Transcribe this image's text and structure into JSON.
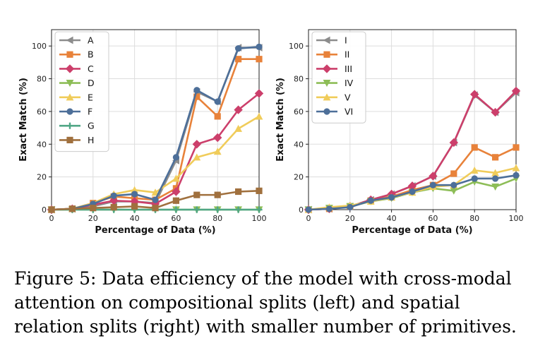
{
  "caption": "Figure 5: Data efficiency of the model with cross-modal attention on compositional splits (left) and spatial relation splits (right) with smaller number of primitives.",
  "chart_data": [
    {
      "type": "line",
      "title": "",
      "xlabel": "Percentage of Data (%)",
      "ylabel": "Exact Match (%)",
      "xlim": [
        0,
        100
      ],
      "ylim": [
        0,
        110
      ],
      "xticks": [
        0,
        20,
        40,
        60,
        80,
        100
      ],
      "yticks": [
        0,
        20,
        40,
        60,
        80,
        100
      ],
      "grid": true,
      "legend_position": "top-left",
      "x": [
        0,
        10,
        20,
        30,
        40,
        50,
        60,
        70,
        80,
        90,
        100
      ],
      "series": [
        {
          "name": "A",
          "color": "#8c8c8c",
          "marker": "triangle-left",
          "values": [
            0,
            0.5,
            2,
            5,
            5,
            4,
            30,
            72,
            66,
            99,
            99
          ]
        },
        {
          "name": "B",
          "color": "#e8823a",
          "marker": "square",
          "values": [
            0,
            0.5,
            4,
            8,
            7,
            6,
            13,
            69,
            57,
            92,
            92
          ]
        },
        {
          "name": "C",
          "color": "#cc3f6b",
          "marker": "diamond",
          "values": [
            0,
            0.5,
            3,
            5.5,
            5,
            3.5,
            11,
            40,
            44,
            61,
            71
          ]
        },
        {
          "name": "D",
          "color": "#8dbd57",
          "marker": "triangle-down",
          "values": [
            0,
            0,
            0,
            0,
            0,
            0,
            0,
            0,
            0,
            0,
            0
          ]
        },
        {
          "name": "E",
          "color": "#f0cc5a",
          "marker": "triangle-up",
          "values": [
            0,
            0.5,
            4,
            9.5,
            12,
            10.5,
            19,
            32,
            35.5,
            49.5,
            57
          ]
        },
        {
          "name": "F",
          "color": "#4d6f99",
          "marker": "circle",
          "values": [
            0,
            0.5,
            3.5,
            8.5,
            9.5,
            6,
            32,
            73,
            66,
            98.5,
            99.5
          ]
        },
        {
          "name": "G",
          "color": "#4fa685",
          "marker": "plus",
          "values": [
            0,
            0,
            0,
            0,
            0,
            0,
            0,
            0,
            0,
            0,
            0
          ]
        },
        {
          "name": "H",
          "color": "#a0703e",
          "marker": "square",
          "values": [
            0,
            0.5,
            1,
            1.5,
            2,
            1,
            5.5,
            9,
            9,
            11,
            11.5
          ]
        }
      ]
    },
    {
      "type": "line",
      "title": "",
      "xlabel": "Percentage of Data (%)",
      "ylabel": "Exact Match (%)",
      "xlim": [
        0,
        100
      ],
      "ylim": [
        0,
        110
      ],
      "xticks": [
        0,
        20,
        40,
        60,
        80,
        100
      ],
      "yticks": [
        0,
        20,
        40,
        60,
        80,
        100
      ],
      "grid": true,
      "legend_position": "top-left",
      "x": [
        0,
        10,
        20,
        30,
        40,
        50,
        60,
        70,
        80,
        90,
        100
      ],
      "series": [
        {
          "name": "I",
          "color": "#8c8c8c",
          "marker": "triangle-left",
          "values": [
            0,
            0.5,
            2,
            6,
            9.5,
            14.5,
            20.5,
            41,
            70,
            59.5,
            71.5
          ]
        },
        {
          "name": "II",
          "color": "#e8823a",
          "marker": "square",
          "values": [
            0,
            0.5,
            2,
            5.5,
            8,
            12,
            15,
            22,
            38,
            32,
            38
          ]
        },
        {
          "name": "III",
          "color": "#cc3f6b",
          "marker": "diamond",
          "values": [
            0,
            0.5,
            2,
            6,
            9.5,
            14.5,
            20.5,
            41,
            70.5,
            59.5,
            72.5
          ]
        },
        {
          "name": "IV",
          "color": "#8dbd57",
          "marker": "triangle-down",
          "values": [
            0,
            1,
            2,
            5,
            7,
            10.5,
            13,
            11.5,
            17,
            14,
            19
          ]
        },
        {
          "name": "V",
          "color": "#f0cc5a",
          "marker": "triangle-up",
          "values": [
            0,
            1.5,
            2.5,
            5,
            7.5,
            10.5,
            14,
            15,
            24,
            22.5,
            25.5
          ]
        },
        {
          "name": "VI",
          "color": "#4d6f99",
          "marker": "circle",
          "values": [
            0,
            0.5,
            1.5,
            5.5,
            7.5,
            11,
            15,
            15,
            19,
            19,
            21
          ]
        }
      ]
    }
  ]
}
